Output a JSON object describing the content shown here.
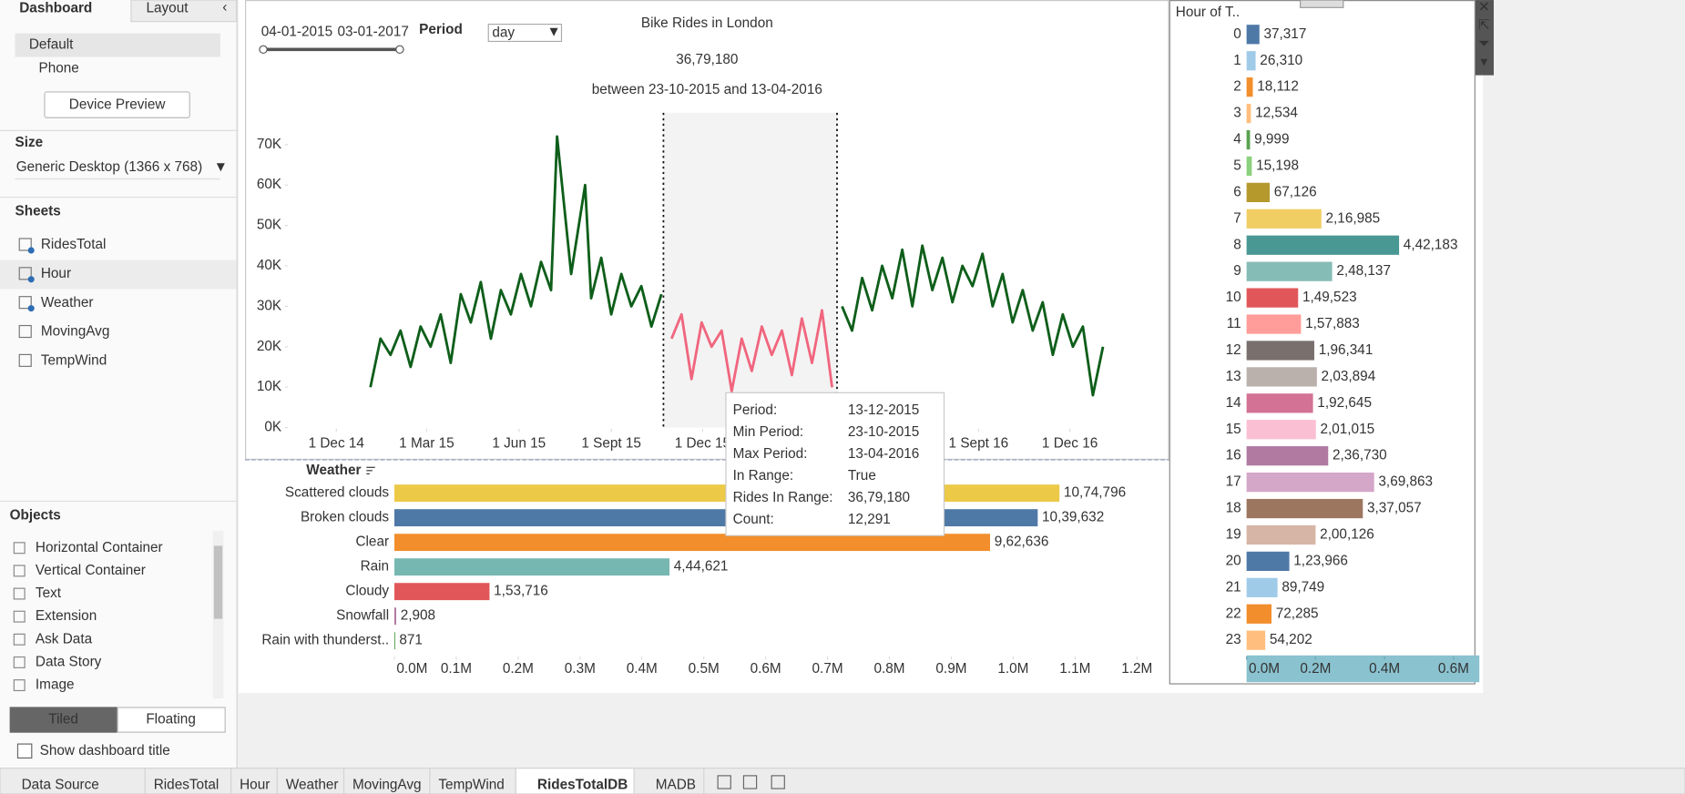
{
  "sidebar": {
    "tabs": [
      "Dashboard",
      "Layout"
    ],
    "devices": [
      "Default",
      "Phone"
    ],
    "device_preview": "Device Preview",
    "size_title": "Size",
    "size_value": "Generic Desktop (1366 x 768)",
    "sheets_title": "Sheets",
    "sheets": [
      "RidesTotal",
      "Hour",
      "Weather",
      "MovingAvg",
      "TempWind"
    ],
    "objects_title": "Objects",
    "objects": [
      "Horizontal Container",
      "Vertical Container",
      "Text",
      "Extension",
      "Ask Data",
      "Data Story",
      "Image"
    ],
    "layout_modes": [
      "Tiled",
      "Floating"
    ],
    "show_title": "Show dashboard title"
  },
  "bottom_tabs": [
    "Data Source",
    "RidesTotal",
    "Hour",
    "Weather",
    "MovingAvg",
    "TempWind",
    "RidesTotalDB",
    "MADB"
  ],
  "filters": {
    "date_range": [
      "04-01-2015",
      "03-01-2017"
    ],
    "period_label": "Period",
    "period_value": "day"
  },
  "tooltip": {
    "rows": [
      [
        "Period:",
        "13-12-2015"
      ],
      [
        "Min Period:",
        "23-10-2015"
      ],
      [
        "Max Period:",
        "13-04-2016"
      ],
      [
        "In Range:",
        "True"
      ],
      [
        "Rides In Range:",
        "36,79,180"
      ],
      [
        "Count:",
        "12,291"
      ]
    ]
  },
  "chart_data": [
    {
      "type": "line",
      "title": "Bike Rides in London",
      "headline": "36,79,180",
      "subtitle": "between 23-10-2015 and 13-04-2016",
      "x": [
        "2015-01-04",
        "2015-01-14",
        "2015-01-24",
        "2015-02-03",
        "2015-02-13",
        "2015-02-23",
        "2015-03-05",
        "2015-03-15",
        "2015-03-25",
        "2015-04-04",
        "2015-04-14",
        "2015-04-24",
        "2015-05-04",
        "2015-05-14",
        "2015-05-24",
        "2015-06-03",
        "2015-06-13",
        "2015-06-23",
        "2015-07-03",
        "2015-07-09",
        "2015-07-23",
        "2015-08-06",
        "2015-08-12",
        "2015-08-22",
        "2015-09-01",
        "2015-09-11",
        "2015-09-21",
        "2015-10-01",
        "2015-10-11",
        "2015-10-21",
        "2015-10-31",
        "2015-11-10",
        "2015-11-20",
        "2015-11-30",
        "2015-12-10",
        "2015-12-20",
        "2015-12-30",
        "2016-01-09",
        "2016-01-19",
        "2016-01-29",
        "2016-02-08",
        "2016-02-18",
        "2016-02-28",
        "2016-03-09",
        "2016-03-19",
        "2016-03-29",
        "2016-04-08",
        "2016-04-18",
        "2016-04-28",
        "2016-05-08",
        "2016-05-18",
        "2016-05-28",
        "2016-06-07",
        "2016-06-17",
        "2016-06-27",
        "2016-07-07",
        "2016-07-17",
        "2016-07-27",
        "2016-08-06",
        "2016-08-16",
        "2016-08-26",
        "2016-09-05",
        "2016-09-15",
        "2016-09-25",
        "2016-10-05",
        "2016-10-15",
        "2016-10-25",
        "2016-11-04",
        "2016-11-14",
        "2016-11-24",
        "2016-12-04",
        "2016-12-14",
        "2016-12-24",
        "2017-01-03"
      ],
      "values": [
        10000,
        22000,
        18000,
        24000,
        15000,
        25000,
        20000,
        28000,
        16000,
        33000,
        26000,
        36000,
        22000,
        34000,
        28000,
        38000,
        30000,
        41000,
        34000,
        72000,
        38000,
        60000,
        32000,
        42000,
        28000,
        38000,
        30000,
        35000,
        25000,
        33000,
        22000,
        28000,
        12000,
        26000,
        20000,
        24000,
        9000,
        22000,
        14000,
        25000,
        18000,
        24000,
        13000,
        27000,
        16000,
        29000,
        10000,
        30000,
        24000,
        37000,
        29000,
        40000,
        32000,
        44000,
        30000,
        45000,
        34000,
        42000,
        31000,
        40000,
        35000,
        43000,
        30000,
        38000,
        26000,
        34000,
        24000,
        31000,
        18000,
        28000,
        20000,
        25000,
        8000,
        20000
      ],
      "color": "#0e5e1a",
      "highlight_color": "#f0667e",
      "highlight_range": [
        "2015-10-23",
        "2016-04-13"
      ],
      "xlim": [
        "2014-09-01",
        "2017-03-10"
      ],
      "xticks": [
        {
          "value": "2014-12-01",
          "label": "1 Dec 14"
        },
        {
          "value": "2015-03-01",
          "label": "1 Mar 15"
        },
        {
          "value": "2015-06-01",
          "label": "1 Jun 15"
        },
        {
          "value": "2015-09-01",
          "label": "1 Sept 15"
        },
        {
          "value": "2015-12-01",
          "label": "1 Dec 15"
        },
        {
          "value": "2016-09-01",
          "label": "1 Sept 16"
        },
        {
          "value": "2016-12-01",
          "label": "1 Dec 16"
        }
      ],
      "ylim": [
        0,
        72000
      ],
      "yticks": [
        {
          "value": 0,
          "label": "0K"
        },
        {
          "value": 10000,
          "label": "10K"
        },
        {
          "value": 20000,
          "label": "20K"
        },
        {
          "value": 30000,
          "label": "30K"
        },
        {
          "value": 40000,
          "label": "40K"
        },
        {
          "value": 50000,
          "label": "50K"
        },
        {
          "value": 60000,
          "label": "60K"
        },
        {
          "value": 70000,
          "label": "70K"
        }
      ]
    },
    {
      "type": "hbar",
      "title": "Weather",
      "categories": [
        "Scattered clouds",
        "Broken clouds",
        "Clear",
        "Rain",
        "Cloudy",
        "Snowfall",
        "Rain with thunderst.."
      ],
      "values": [
        1074796,
        1039632,
        962636,
        444621,
        153716,
        2908,
        871
      ],
      "value_labels": [
        "10,74,796",
        "10,39,632",
        "9,62,636",
        "4,44,621",
        "1,53,716",
        "2,908",
        "871"
      ],
      "colors": [
        "#edc948",
        "#4e79a7",
        "#f28e2b",
        "#76b7b2",
        "#e15759",
        "#b07aa1",
        "#59a14f"
      ],
      "xlim": [
        0,
        1200000
      ],
      "xticks": [
        {
          "value": 0,
          "label": "0.0M"
        },
        {
          "value": 100000,
          "label": "0.1M"
        },
        {
          "value": 200000,
          "label": "0.2M"
        },
        {
          "value": 300000,
          "label": "0.3M"
        },
        {
          "value": 400000,
          "label": "0.4M"
        },
        {
          "value": 500000,
          "label": "0.5M"
        },
        {
          "value": 600000,
          "label": "0.6M"
        },
        {
          "value": 700000,
          "label": "0.7M"
        },
        {
          "value": 800000,
          "label": "0.8M"
        },
        {
          "value": 900000,
          "label": "0.9M"
        },
        {
          "value": 1000000,
          "label": "1.0M"
        },
        {
          "value": 1100000,
          "label": "1.1M"
        },
        {
          "value": 1200000,
          "label": "1.2M"
        }
      ]
    },
    {
      "type": "hbar",
      "title": "Hour of T..",
      "categories": [
        "0",
        "1",
        "2",
        "3",
        "4",
        "5",
        "6",
        "7",
        "8",
        "9",
        "10",
        "11",
        "12",
        "13",
        "14",
        "15",
        "16",
        "17",
        "18",
        "19",
        "20",
        "21",
        "22",
        "23"
      ],
      "values": [
        37317,
        26310,
        18112,
        12534,
        9999,
        15198,
        67126,
        216985,
        442183,
        248137,
        149523,
        157883,
        196341,
        203894,
        192645,
        201015,
        236730,
        369863,
        337057,
        200126,
        123966,
        89749,
        72285,
        54202
      ],
      "value_labels": [
        "37,317",
        "26,310",
        "18,112",
        "12,534",
        "9,999",
        "15,198",
        "67,126",
        "2,16,985",
        "4,42,183",
        "2,48,137",
        "1,49,523",
        "1,57,883",
        "1,96,341",
        "2,03,894",
        "1,92,645",
        "2,01,015",
        "2,36,730",
        "3,69,863",
        "3,37,057",
        "2,00,126",
        "1,23,966",
        "89,749",
        "72,285",
        "54,202"
      ],
      "colors": [
        "#4e79a7",
        "#a0cbe8",
        "#f28e2b",
        "#ffbe7d",
        "#59a14f",
        "#8cd17d",
        "#b6992d",
        "#f1ce63",
        "#499894",
        "#86bcb6",
        "#e15759",
        "#ff9d9a",
        "#79706e",
        "#bab0ac",
        "#d37295",
        "#fabfd2",
        "#b07aa1",
        "#d4a6c8",
        "#9d7660",
        "#d7b5a6",
        "#4e79a7",
        "#a0cbe8",
        "#f28e2b",
        "#ffbe7d"
      ],
      "xlim": [
        0,
        650000
      ],
      "xticks": [
        {
          "value": 0,
          "label": "0.0M"
        },
        {
          "value": 200000,
          "label": "0.2M"
        },
        {
          "value": 400000,
          "label": "0.4M"
        },
        {
          "value": 600000,
          "label": "0.6M"
        }
      ]
    }
  ]
}
